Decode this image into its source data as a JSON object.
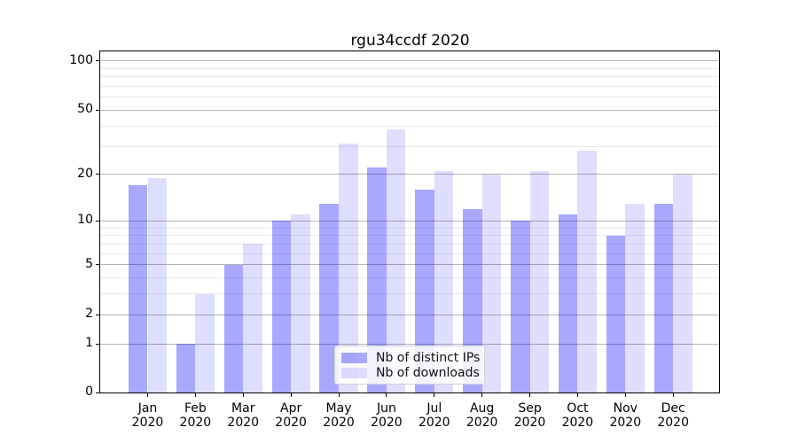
{
  "chart_data": {
    "type": "bar",
    "title": "rgu34ccdf 2020",
    "categories": [
      "Jan",
      "Feb",
      "Mar",
      "Apr",
      "May",
      "Jun",
      "Jul",
      "Aug",
      "Sep",
      "Oct",
      "Nov",
      "Dec"
    ],
    "x_year_label": "2020",
    "series": [
      {
        "name": "Nb of distinct IPs",
        "base_color": "#0000ff",
        "alpha": 0.34,
        "display_color": "#a8a8ff",
        "values": [
          17,
          1,
          5,
          10,
          13,
          22,
          16,
          12,
          10,
          11,
          8,
          13
        ]
      },
      {
        "name": "Nb of downloads",
        "base_color": "#0000ff",
        "alpha": 0.13,
        "display_color": "#dedeff",
        "values": [
          19,
          3,
          7,
          11,
          31,
          38,
          21,
          20,
          21,
          28,
          13,
          20
        ]
      }
    ],
    "y_ticks": [
      100,
      50,
      20,
      10,
      5,
      2,
      1,
      0
    ],
    "y_minor_ticks": [
      3,
      4,
      6,
      7,
      8,
      9,
      30,
      40,
      60,
      70,
      80,
      90
    ],
    "y_scale": "log(1+x)",
    "ylim": [
      0,
      114
    ],
    "grid": true,
    "grid_major_color": "#b5b5b5",
    "grid_minor_color": "#e9e9e9",
    "legend_position": "lower center"
  }
}
